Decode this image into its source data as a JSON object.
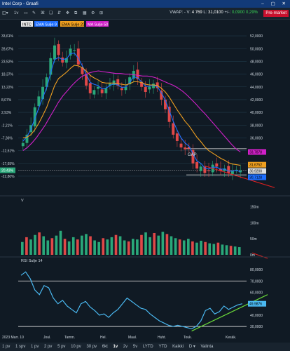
{
  "window": {
    "title": "Intel Corp - Graafi",
    "controls": "– ▢ ✕"
  },
  "toolbar": {
    "chart_type": "◫▾",
    "interval": "1v",
    "items": [
      "▭",
      "✎",
      "⌘",
      "❏",
      "⇵",
      "✥",
      "⧉",
      "▦",
      "⚙",
      "⊞"
    ],
    "vwap_label": "VWAP: - V: 4 769 L: 31,0100 +/-: 0,0900 0,29%",
    "vwap_prefix": "VWAP: - V:",
    "volume": "4 769",
    "last_label": "L:",
    "last": "31,0100",
    "change_label": "+/-:",
    "change": "0,0900",
    "change_pct": "0,29%",
    "pre_market": "Pre-market"
  },
  "legend": {
    "symbol": "INTC",
    "ema9": "EMA Sulje 9",
    "ema20": "EMA Sulje 20",
    "ma50": "MA Sulje 50",
    "volume": "V",
    "rsi": "RSI Sulje 14"
  },
  "colors": {
    "ema9": "#1f6fff",
    "ema20": "#f0a020",
    "ma50": "#d020c8",
    "up": "#2aa87a",
    "down": "#e04848",
    "rsi": "#4ab8f0",
    "trend": "#6ad93a",
    "resist": "#e02020"
  },
  "annotation_gap": "GAP",
  "price_axis": [
    "52,0000",
    "50,0000",
    "48,0000",
    "46,0000",
    "44,0000",
    "42,0000",
    "40,0000",
    "38,0000",
    "36,0000",
    "34,0000",
    "32,0000",
    "30,0000"
  ],
  "pct_axis": [
    "33,61%",
    "28,67%",
    "23,52%",
    "18,37%",
    "13,22%",
    "8,07%",
    "2,93%",
    "-2,21%",
    "-7,36%",
    "-12,51%",
    "-17,65%",
    "-22,80%"
  ],
  "pct_current": "20,43%",
  "price_tags": [
    {
      "value": "33,7878",
      "color": "#d020c8"
    },
    {
      "value": "31,6752",
      "color": "#f0a020"
    },
    {
      "value": "30,9200",
      "color": "#e0e0e0"
    },
    {
      "value": "30,7128",
      "color": "#1f6fff"
    }
  ],
  "volume_axis": [
    "150m",
    "100m",
    "50m",
    "0m"
  ],
  "rsi_axis": [
    "80,0000",
    "70,0000",
    "60,0000",
    "50,0000",
    "40,0000",
    "30,0000"
  ],
  "rsi_current": "49,9876",
  "x_axis": [
    "2023 Marr. 10",
    "Joul.",
    "Tamm.",
    "Hel.",
    "Maal.",
    "Huht.",
    "Touk.",
    "Kesäk."
  ],
  "bottom": {
    "ranges": [
      "1 pv",
      "1 spv",
      "1 pv",
      "2 pv",
      "5 pv",
      "10 pv",
      "30 pv",
      "6 kt",
      "1 v",
      "2 v",
      "5 v",
      "YTD",
      "Kaikki",
      "D ▾",
      "Valinta"
    ],
    "labels": [
      "1 pv",
      "1 spv",
      "1 pv",
      "2 pv",
      "5 pv",
      "10 pv",
      "30 pv",
      "6kt",
      "1v",
      "2v",
      "5v",
      "LYTD",
      "YTD",
      "Kaikki",
      "D ▾",
      "Valinta"
    ],
    "active": "1v"
  },
  "chart_data": {
    "type": "line",
    "price_range": [
      29,
      53
    ],
    "series": [
      {
        "name": "INTC",
        "type": "candlestick",
        "close": [
          35.2,
          36.5,
          38.0,
          40.8,
          42.5,
          44.0,
          45.5,
          48.5,
          50.5,
          49.0,
          47.8,
          48.5,
          50.0,
          49.8,
          47.5,
          46.0,
          44.2,
          43.0,
          43.5,
          44.0,
          43.0,
          43.8,
          44.5,
          45.0,
          44.2,
          43.5,
          44.0,
          45.5,
          46.5,
          45.2,
          44.0,
          43.2,
          44.0,
          44.5,
          43.8,
          42.0,
          40.5,
          38.5,
          36.5,
          35.5,
          34.5,
          34.2,
          34.3,
          32.0,
          31.2,
          31.5,
          30.5,
          30.8,
          31.8,
          31.5,
          30.8,
          31.2,
          30.5,
          30.8,
          31.0,
          30.9
        ]
      },
      {
        "name": "EMA Sulje 9",
        "values": [
          35.5,
          36.2,
          37.4,
          39.0,
          40.7,
          42.3,
          43.9,
          46.2,
          48.3,
          48.6,
          48.3,
          48.4,
          49.2,
          49.3,
          48.5,
          47.3,
          46.0,
          44.7,
          44.4,
          44.2,
          43.7,
          43.8,
          44.2,
          44.5,
          44.3,
          43.9,
          44.0,
          44.7,
          45.6,
          45.4,
          44.8,
          44.1,
          44.1,
          44.3,
          44.0,
          43.1,
          41.9,
          40.3,
          38.6,
          37.2,
          36.0,
          35.2,
          34.7,
          33.5,
          32.4,
          32.0,
          31.3,
          31.1,
          31.4,
          31.4,
          31.1,
          31.1,
          30.8,
          30.8,
          30.9,
          30.7
        ]
      },
      {
        "name": "EMA Sulje 20",
        "values": [
          36.0,
          36.1,
          36.5,
          37.3,
          38.3,
          39.5,
          40.8,
          42.5,
          44.2,
          45.3,
          45.8,
          46.3,
          46.9,
          47.4,
          47.3,
          47.0,
          46.5,
          45.8,
          45.4,
          45.1,
          44.7,
          44.6,
          44.6,
          44.6,
          44.5,
          44.4,
          44.3,
          44.5,
          44.8,
          44.8,
          44.7,
          44.4,
          44.3,
          44.3,
          44.2,
          43.8,
          43.2,
          42.4,
          41.4,
          40.4,
          39.5,
          38.6,
          37.9,
          37.0,
          36.1,
          35.4,
          34.6,
          34.0,
          33.6,
          33.2,
          32.8,
          32.5,
          32.1,
          31.9,
          31.8,
          31.7
        ]
      },
      {
        "name": "MA Sulje 50",
        "values": [
          34.0,
          34.5,
          35.2,
          36.0,
          37.0,
          38.0,
          39.2,
          40.4,
          41.6,
          42.6,
          43.4,
          44.2,
          44.9,
          45.5,
          45.9,
          46.2,
          46.4,
          46.5,
          46.4,
          46.3,
          46.2,
          46.1,
          46.1,
          46.0,
          46.0,
          45.9,
          45.8,
          45.7,
          45.7,
          45.6,
          45.4,
          45.1,
          44.8,
          44.5,
          44.2,
          43.8,
          43.3,
          42.7,
          42.0,
          41.3,
          40.5,
          39.8,
          39.0,
          38.2,
          37.4,
          36.6,
          35.8,
          35.0,
          34.3,
          33.8
        ]
      },
      {
        "name": "RSI Sulje 14",
        "values": [
          75,
          78,
          72,
          62,
          58,
          66,
          64,
          55,
          50,
          53,
          48,
          45,
          42,
          50,
          52,
          47,
          44,
          40,
          41,
          38,
          42,
          45,
          50,
          55,
          52,
          49,
          46,
          45,
          41,
          38,
          35,
          33,
          31,
          30,
          31,
          30,
          29,
          28,
          30,
          35,
          44,
          46,
          41,
          43,
          48,
          45,
          47,
          49,
          50
        ]
      }
    ],
    "volume": [
      40,
      55,
      48,
      62,
      70,
      58,
      45,
      52,
      60,
      75,
      50,
      42,
      55,
      48,
      60,
      65,
      58,
      45,
      40,
      52,
      48,
      55,
      62,
      58,
      45,
      42,
      50,
      48,
      62,
      70,
      55,
      68,
      60,
      72,
      65,
      58,
      52,
      48,
      45,
      50,
      42,
      38,
      44,
      40,
      36,
      34,
      38,
      32,
      30,
      28,
      26,
      24
    ],
    "rsi_levels": [
      30,
      70
    ],
    "rsi_range": [
      22,
      85
    ],
    "ylabel": "",
    "xlabel": ""
  }
}
